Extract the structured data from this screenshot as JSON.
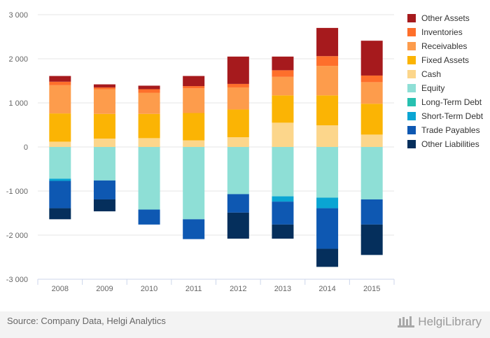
{
  "chart_data": {
    "type": "bar",
    "stacked": true,
    "categories": [
      "2008",
      "2009",
      "2010",
      "2011",
      "2012",
      "2013",
      "2014",
      "2015"
    ],
    "ylim": [
      -3000,
      3000
    ],
    "yticks": [
      -3000,
      -2000,
      -1000,
      0,
      1000,
      2000,
      3000
    ],
    "ytick_labels": [
      "-3 000",
      "-2 000",
      "-1 000",
      "0",
      "1 000",
      "2 000",
      "3 000"
    ],
    "grid": true,
    "legend_position": "right",
    "series": [
      {
        "name": "Cash",
        "color": "#fcd68b",
        "values": [
          120,
          190,
          200,
          150,
          220,
          550,
          490,
          280
        ]
      },
      {
        "name": "Fixed Assets",
        "color": "#fbb404",
        "values": [
          640,
          560,
          550,
          620,
          630,
          620,
          680,
          700
        ]
      },
      {
        "name": "Receivables",
        "color": "#fd9c4c",
        "values": [
          640,
          560,
          480,
          560,
          500,
          420,
          670,
          490
        ]
      },
      {
        "name": "Inventories",
        "color": "#fe6f2b",
        "values": [
          80,
          40,
          80,
          50,
          80,
          150,
          220,
          150
        ]
      },
      {
        "name": "Other Assets",
        "color": "#a61a1d",
        "values": [
          130,
          70,
          80,
          230,
          620,
          310,
          640,
          790
        ]
      },
      {
        "name": "Equity",
        "color": "#8edfd6",
        "values": [
          -720,
          -760,
          -1420,
          -1640,
          -1070,
          -1120,
          -1150,
          -1190
        ]
      },
      {
        "name": "Long-Term Debt",
        "color": "#27c0b0",
        "values": [
          0,
          0,
          0,
          0,
          0,
          0,
          0,
          0
        ]
      },
      {
        "name": "Short-Term Debt",
        "color": "#0aa5d3",
        "values": [
          -50,
          0,
          0,
          0,
          0,
          -120,
          -240,
          0
        ]
      },
      {
        "name": "Trade Payables",
        "color": "#0e58b2",
        "values": [
          -620,
          -430,
          -340,
          -450,
          -420,
          -520,
          -920,
          -570
        ]
      },
      {
        "name": "Other Liabilities",
        "color": "#052f5c",
        "values": [
          -250,
          -270,
          0,
          0,
          -590,
          -320,
          -410,
          -690
        ]
      }
    ],
    "stack_order_positive": [
      "Cash",
      "Fixed Assets",
      "Receivables",
      "Inventories",
      "Other Assets"
    ],
    "stack_order_negative": [
      "Equity",
      "Long-Term Debt",
      "Short-Term Debt",
      "Trade Payables",
      "Other Liabilities"
    ],
    "legend_order": [
      "Other Assets",
      "Inventories",
      "Receivables",
      "Fixed Assets",
      "Cash",
      "Equity",
      "Long-Term Debt",
      "Short-Term Debt",
      "Trade Payables",
      "Other Liabilities"
    ]
  },
  "footer": {
    "source": "Source: Company Data, Helgi Analytics",
    "brand": "HelgiLibrary"
  }
}
